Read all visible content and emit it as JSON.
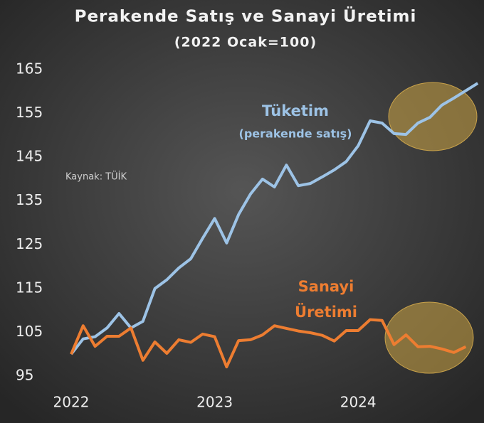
{
  "chart_data": {
    "type": "line",
    "title": "Perakende Satış ve Sanayi Üretimi",
    "subtitle": "(2022 Ocak=100)",
    "source": "Kaynak: TÜİK",
    "annotations": [
      "Tüketim",
      "(perakende satış)",
      "Sanayi",
      "Üretimi"
    ],
    "categories": [
      "2022",
      null,
      null,
      null,
      null,
      null,
      null,
      null,
      null,
      null,
      null,
      null,
      "2023",
      null,
      null,
      null,
      null,
      null,
      null,
      null,
      null,
      null,
      null,
      null,
      "2024",
      null,
      null,
      null,
      null,
      null,
      null,
      null,
      null,
      null,
      null
    ],
    "series": [
      {
        "name": "Tüketim (perakende satış)",
        "color": "#9dc3e6",
        "values": [
          100,
          103.5,
          104,
          106,
          109.3,
          106,
          107.5,
          115,
          117,
          119.7,
          121.8,
          126.5,
          131,
          125.4,
          131.9,
          136.6,
          140,
          138.2,
          143.2,
          138.5,
          139,
          140.5,
          142.1,
          144,
          147.6,
          153.3,
          152.8,
          150.4,
          150.2,
          152.8,
          154.1,
          156.9,
          158.5,
          160.2,
          161.9
        ]
      },
      {
        "name": "Sanayi Üretimi",
        "color": "#ed7d31",
        "values": [
          100,
          106.5,
          101.8,
          104.1,
          104.1,
          106,
          98.6,
          102.8,
          100.2,
          103.3,
          102.7,
          104.6,
          104,
          97.1,
          103.1,
          103.3,
          104.4,
          106.5,
          105.9,
          105.3,
          104.9,
          104.3,
          103,
          105.4,
          105.4,
          107.9,
          107.7,
          102.2,
          104.4,
          101.7,
          101.8,
          101.2,
          100.4,
          101.7,
          null
        ]
      }
    ],
    "ylim": [
      95,
      165
    ],
    "yticks": [
      95,
      105,
      115,
      125,
      135,
      145,
      155,
      165
    ],
    "grid": false
  }
}
